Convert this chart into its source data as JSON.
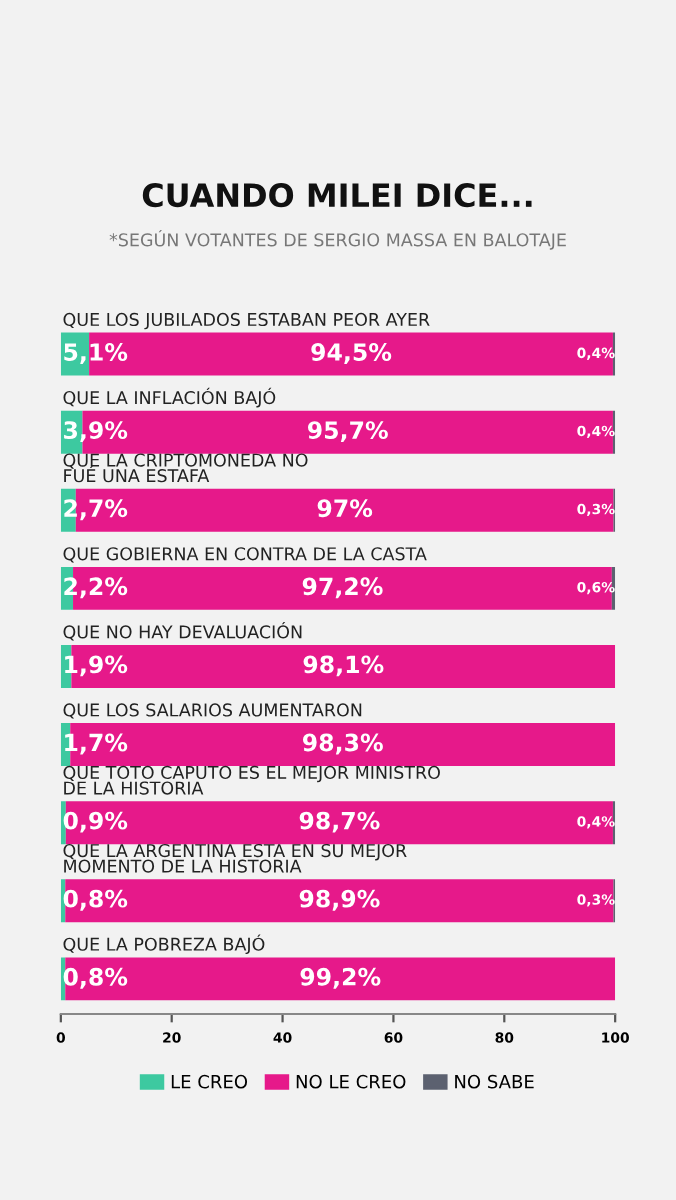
{
  "chart_data": {
    "type": "bar",
    "orientation": "horizontal",
    "stacked": true,
    "title": "CUANDO MILEI DICE...",
    "subtitle": "*SEGÚN VOTANTES DE SERGIO MASSA EN BALOTAJE",
    "categories": [
      "QUE LOS JUBILADOS ESTABAN PEOR AYER",
      "QUE LA INFLACIÓN BAJÓ",
      "QUE LA CRIPTOMONEDA NO\nFUÉ UNA ESTAFA",
      "QUE GOBIERNA EN CONTRA DE LA CASTA",
      "QUE NO HAY DEVALUACIÓN",
      "QUE LOS SALARIOS AUMENTARON",
      "QUE TOTO CAPUTO ES EL MEJOR MINISTRO\nDE LA HISTORIA",
      "QUE LA ARGENTINA ESTA EN SU MEJOR\nMOMENTO DE LA HISTORIA",
      "QUE LA POBREZA BAJÓ"
    ],
    "series": [
      {
        "name": "LE CREO",
        "color": "#3dc9a0",
        "values": [
          5.1,
          3.9,
          2.7,
          2.2,
          1.9,
          1.7,
          0.9,
          0.8,
          0.8
        ],
        "value_labels": [
          "5,1%",
          "3,9%",
          "2,7%",
          "2,2%",
          "1,9%",
          "1,7%",
          "0,9%",
          "0,8%",
          "0,8%"
        ]
      },
      {
        "name": "NO LE CREO",
        "color": "#e6198a",
        "values": [
          94.5,
          95.7,
          97,
          97.2,
          98.1,
          98.3,
          98.7,
          98.9,
          99.2
        ],
        "value_labels": [
          "94,5%",
          "95,7%",
          "97%",
          "97,2%",
          "98,1%",
          "98,3%",
          "98,7%",
          "98,9%",
          "99,2%"
        ]
      },
      {
        "name": "NO SABE",
        "color": "#5c6170",
        "values": [
          0.4,
          0.4,
          0.3,
          0.6,
          null,
          null,
          0.4,
          0.3,
          null
        ],
        "value_labels": [
          "0,4%",
          "0,4%",
          "0,3%",
          "0,6%",
          null,
          null,
          "0,4%",
          "0,3%",
          null
        ]
      }
    ],
    "xlim": [
      0,
      100
    ],
    "xticks": [
      0,
      20,
      40,
      60,
      80,
      100
    ],
    "legend": "bottom",
    "grid": false
  }
}
